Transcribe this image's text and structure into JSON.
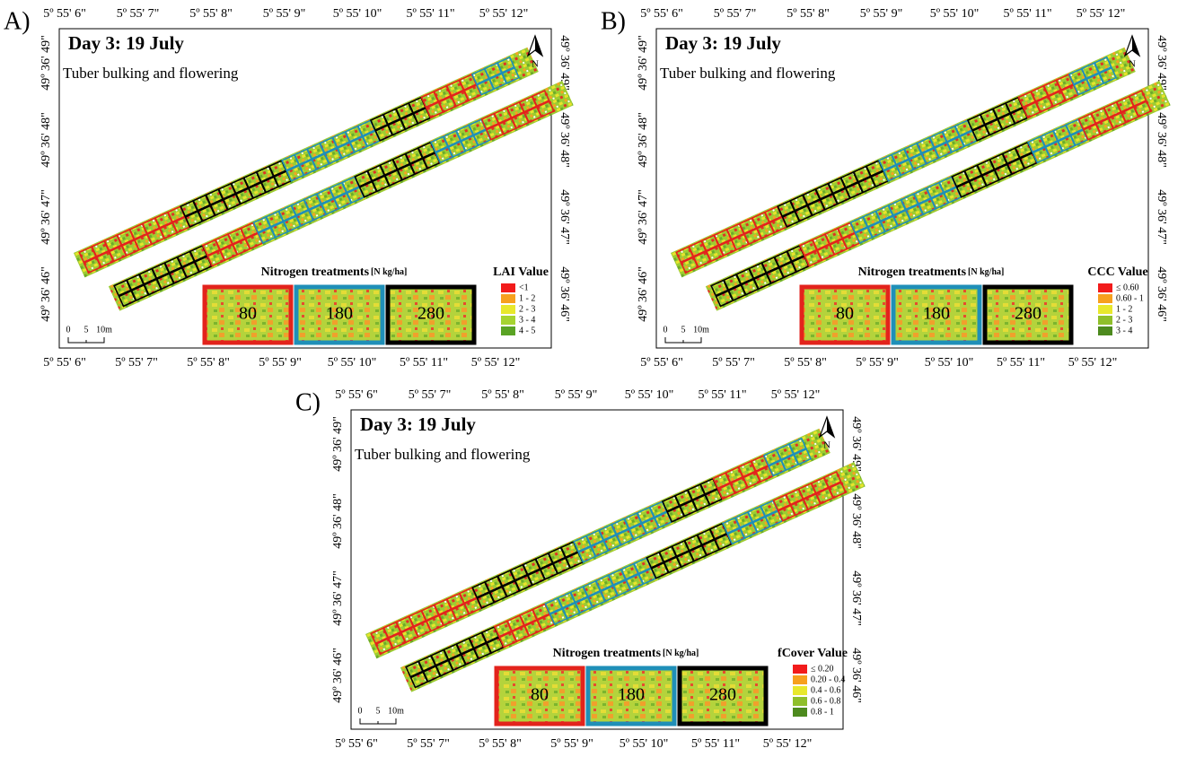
{
  "panels": [
    {
      "letter": "A)",
      "title": "Day 3: 19 July",
      "subtitle": "Tuber bulking  and flowering",
      "top_ticks": [
        "5º 55' 6\"",
        "5º 55' 7\"",
        "5º 55' 8\"",
        "5º 55' 9\"",
        "5º 55' 10\"",
        "5º 55' 11\"",
        "5º 55' 12\""
      ],
      "bottom_ticks": [
        "5º 55' 6\"",
        "5º 55' 7\"",
        "5º 55' 8\"",
        "5º 55' 9\"",
        "5º 55' 10\"",
        "5º 55' 11\"",
        "5º 55' 12\""
      ],
      "left_ticks": [
        "49º 36' 49\"",
        "49º 36' 48\"",
        "49º 36' 47\"",
        "49º 36' 46\""
      ],
      "right_ticks": [
        "49º 36' 49\"",
        "49º 36' 48\"",
        "49º 36' 47\"",
        "49º 36' 46\""
      ],
      "north": "N",
      "treatments_title": "Nitrogen treatments",
      "treatments_unit": "[N kg/ha]",
      "treatments": [
        {
          "label": "80",
          "color": "#e3231c"
        },
        {
          "label": "180",
          "color": "#1f8fb8"
        },
        {
          "label": "280",
          "color": "#000000"
        }
      ],
      "value_title": "LAI Value",
      "value_classes": [
        {
          "label": "<1",
          "color": "#f21b1b"
        },
        {
          "label": "1 - 2",
          "color": "#f7a01e"
        },
        {
          "label": "2 - 3",
          "color": "#e8e82c"
        },
        {
          "label": "3 - 4",
          "color": "#a6d430"
        },
        {
          "label": "4 - 5",
          "color": "#5aa324"
        }
      ],
      "scale": [
        "0",
        "5",
        "10m"
      ]
    },
    {
      "letter": "B)",
      "title": "Day 3: 19 July",
      "subtitle": "Tuber bulking  and flowering",
      "top_ticks": [
        "5º 55' 6\"",
        "5º 55' 7\"",
        "5º 55' 8\"",
        "5º 55' 9\"",
        "5º 55' 10\"",
        "5º 55' 11\"",
        "5º 55' 12\""
      ],
      "bottom_ticks": [
        "5º 55' 6\"",
        "5º 55' 7\"",
        "5º 55' 8\"",
        "5º 55' 9\"",
        "5º 55' 10\"",
        "5º 55' 11\"",
        "5º 55' 12\""
      ],
      "left_ticks": [
        "49º 36' 49\"",
        "49º 36' 48\"",
        "49º 36' 47\"",
        "49º 36' 46\""
      ],
      "right_ticks": [
        "49º 36' 49\"",
        "49º 36' 48\"",
        "49º 36' 47\"",
        "49º 36' 46\""
      ],
      "north": "N",
      "treatments_title": "Nitrogen treatments",
      "treatments_unit": "[N kg/ha]",
      "treatments": [
        {
          "label": "80",
          "color": "#e3231c"
        },
        {
          "label": "180",
          "color": "#1f8fb8"
        },
        {
          "label": "280",
          "color": "#000000"
        }
      ],
      "value_title": "CCC Value",
      "value_classes": [
        {
          "label": "≤ 0.60",
          "color": "#f21b1b"
        },
        {
          "label": "0.60 - 1",
          "color": "#f7a01e"
        },
        {
          "label": "1 - 2",
          "color": "#e8e82c"
        },
        {
          "label": "2 - 3",
          "color": "#8fbf2a"
        },
        {
          "label": "3 - 4",
          "color": "#4d8a1e"
        }
      ],
      "scale": [
        "0",
        "5",
        "10m"
      ]
    },
    {
      "letter": "C)",
      "title": "Day 3: 19 July",
      "subtitle": "Tuber bulking  and flowering",
      "top_ticks": [
        "5º 55' 6\"",
        "5º 55' 7\"",
        "5º 55' 8\"",
        "5º 55' 9\"",
        "5º 55' 10\"",
        "5º 55' 11\"",
        "5º 55' 12\""
      ],
      "bottom_ticks": [
        "5º 55' 6\"",
        "5º 55' 7\"",
        "5º 55' 8\"",
        "5º 55' 9\"",
        "5º 55' 10\"",
        "5º 55' 11\"",
        "5º 55' 12\""
      ],
      "left_ticks": [
        "49º 36' 49\"",
        "49º 36' 48\"",
        "49º 36' 47\"",
        "49º 36' 46\""
      ],
      "right_ticks": [
        "49º 36' 49\"",
        "49º 36' 48\"",
        "49º 36' 47\"",
        "49º 36' 46\""
      ],
      "north": "N",
      "treatments_title": "Nitrogen treatments",
      "treatments_unit": "[N kg/ha]",
      "treatments": [
        {
          "label": "80",
          "color": "#e3231c"
        },
        {
          "label": "180",
          "color": "#1f8fb8"
        },
        {
          "label": "280",
          "color": "#000000"
        }
      ],
      "value_title": "fCover Value",
      "value_classes": [
        {
          "label": "≤ 0.20",
          "color": "#f21b1b"
        },
        {
          "label": "0.20 - 0.4",
          "color": "#f7a01e"
        },
        {
          "label": "0.4 - 0.6",
          "color": "#e8e82c"
        },
        {
          "label": "0.6 - 0.8",
          "color": "#8fbf2a"
        },
        {
          "label": "0.8 - 1",
          "color": "#4d8a1e"
        }
      ],
      "scale": [
        "0",
        "5",
        "10m"
      ]
    }
  ]
}
